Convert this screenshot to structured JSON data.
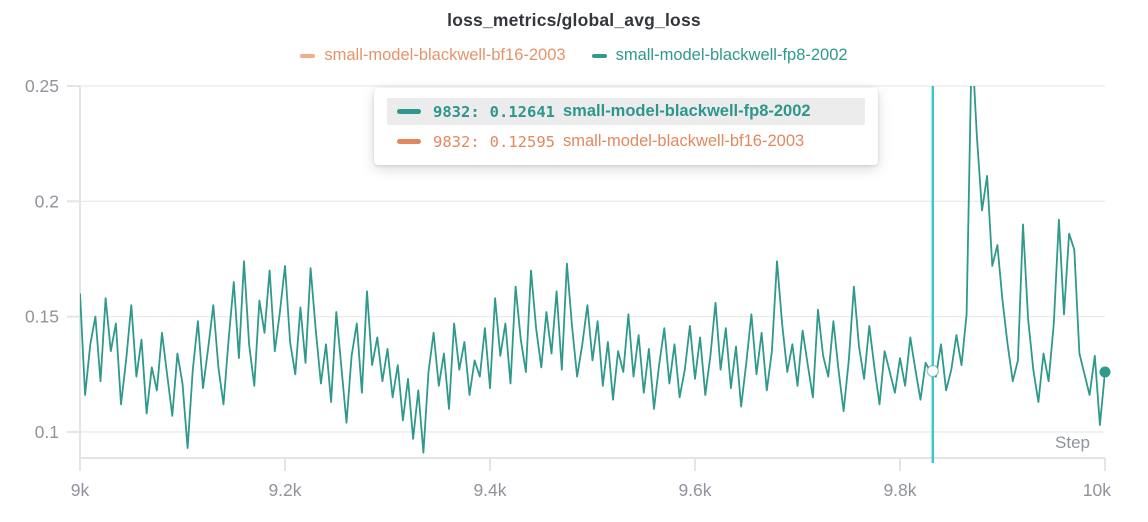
{
  "chart": {
    "title": "loss_metrics/global_avg_loss",
    "xlabel": "Step"
  },
  "colors": {
    "teal_series": "#2f998c",
    "orange_series": "#e28a60",
    "orange_legend_dash": "#efae8e",
    "crosshair": "#3cc7cd",
    "grid_line": "#ebebeb",
    "axis_line": "#e4e4e4",
    "tick_label": "#8f939b",
    "tooltip_highlight_bg": "#ececec",
    "title_text": "#33363b"
  },
  "legend": {
    "items": [
      {
        "label": "small-model-blackwell-bf16-2003",
        "text_color": "#e6936a",
        "dash_color": "#efae8e"
      },
      {
        "label": "small-model-blackwell-fp8-2002",
        "text_color": "#2f998c",
        "dash_color": "#2f998c"
      }
    ]
  },
  "tooltip": {
    "rows": [
      {
        "step": "9832:",
        "value": "0.12641",
        "name": "small-model-blackwell-fp8-2002",
        "color": "#2e968c",
        "highlighted": true
      },
      {
        "step": "9832:",
        "value": "0.12595",
        "name": "small-model-blackwell-bf16-2003",
        "color": "#e0895e",
        "highlighted": false
      }
    ]
  },
  "chart_data": {
    "type": "line",
    "title": "loss_metrics/global_avg_loss",
    "xlabel": "Step",
    "ylabel": "",
    "x_range": [
      9000,
      10000
    ],
    "y_range": [
      0.0887,
      0.25
    ],
    "x_ticks": {
      "values": [
        9000,
        9200,
        9400,
        9600,
        9800,
        10000
      ],
      "labels": [
        "9k",
        "9.2k",
        "9.4k",
        "9.6k",
        "9.8k",
        "10k"
      ]
    },
    "y_ticks": {
      "values": [
        0.1,
        0.15,
        0.2,
        0.25
      ],
      "labels": [
        "0.1",
        "0.15",
        "0.2",
        "0.25"
      ]
    },
    "grid": "horizontal",
    "legend_position": "top-center",
    "hover_point": {
      "step": 9832,
      "value": 0.12641,
      "series": "small-model-blackwell-fp8-2002"
    },
    "series": [
      {
        "name": "small-model-blackwell-fp8-2002",
        "color": "#2f998c",
        "visible": true,
        "step_start": 9000,
        "step_increment": 5,
        "values": [
          0.16,
          0.116,
          0.138,
          0.15,
          0.122,
          0.158,
          0.135,
          0.147,
          0.112,
          0.131,
          0.155,
          0.124,
          0.14,
          0.108,
          0.128,
          0.118,
          0.143,
          0.125,
          0.107,
          0.134,
          0.121,
          0.093,
          0.127,
          0.148,
          0.119,
          0.136,
          0.155,
          0.128,
          0.112,
          0.14,
          0.165,
          0.132,
          0.174,
          0.138,
          0.12,
          0.157,
          0.143,
          0.17,
          0.135,
          0.152,
          0.172,
          0.139,
          0.125,
          0.154,
          0.13,
          0.171,
          0.144,
          0.121,
          0.138,
          0.113,
          0.152,
          0.128,
          0.104,
          0.133,
          0.147,
          0.117,
          0.161,
          0.129,
          0.141,
          0.122,
          0.136,
          0.115,
          0.129,
          0.105,
          0.123,
          0.097,
          0.118,
          0.091,
          0.126,
          0.143,
          0.12,
          0.134,
          0.11,
          0.147,
          0.127,
          0.139,
          0.116,
          0.131,
          0.124,
          0.145,
          0.119,
          0.158,
          0.133,
          0.147,
          0.121,
          0.163,
          0.14,
          0.126,
          0.17,
          0.145,
          0.128,
          0.152,
          0.134,
          0.161,
          0.127,
          0.173,
          0.146,
          0.124,
          0.138,
          0.155,
          0.131,
          0.148,
          0.12,
          0.139,
          0.114,
          0.135,
          0.126,
          0.151,
          0.124,
          0.142,
          0.117,
          0.136,
          0.11,
          0.129,
          0.145,
          0.121,
          0.138,
          0.115,
          0.127,
          0.146,
          0.123,
          0.141,
          0.116,
          0.133,
          0.156,
          0.127,
          0.145,
          0.119,
          0.137,
          0.111,
          0.13,
          0.151,
          0.125,
          0.143,
          0.118,
          0.135,
          0.174,
          0.147,
          0.126,
          0.138,
          0.12,
          0.144,
          0.129,
          0.115,
          0.153,
          0.133,
          0.124,
          0.148,
          0.127,
          0.109,
          0.131,
          0.163,
          0.137,
          0.123,
          0.146,
          0.128,
          0.112,
          0.135,
          0.126,
          0.117,
          0.132,
          0.12,
          0.141,
          0.127,
          0.114,
          0.13,
          0.126,
          0.124,
          0.138,
          0.118,
          0.127,
          0.142,
          0.129,
          0.151,
          0.27,
          0.228,
          0.196,
          0.211,
          0.172,
          0.181,
          0.157,
          0.138,
          0.122,
          0.131,
          0.19,
          0.149,
          0.127,
          0.113,
          0.134,
          0.122,
          0.147,
          0.192,
          0.151,
          0.186,
          0.179,
          0.134,
          0.125,
          0.116,
          0.133,
          0.103,
          0.126
        ],
        "end_marker": {
          "step": 10000,
          "value": 0.126
        }
      },
      {
        "name": "small-model-blackwell-bf16-2003",
        "color": "#e28a60",
        "visible": false,
        "known_points": [
          {
            "step": 9832,
            "value": 0.12595
          }
        ]
      }
    ]
  }
}
